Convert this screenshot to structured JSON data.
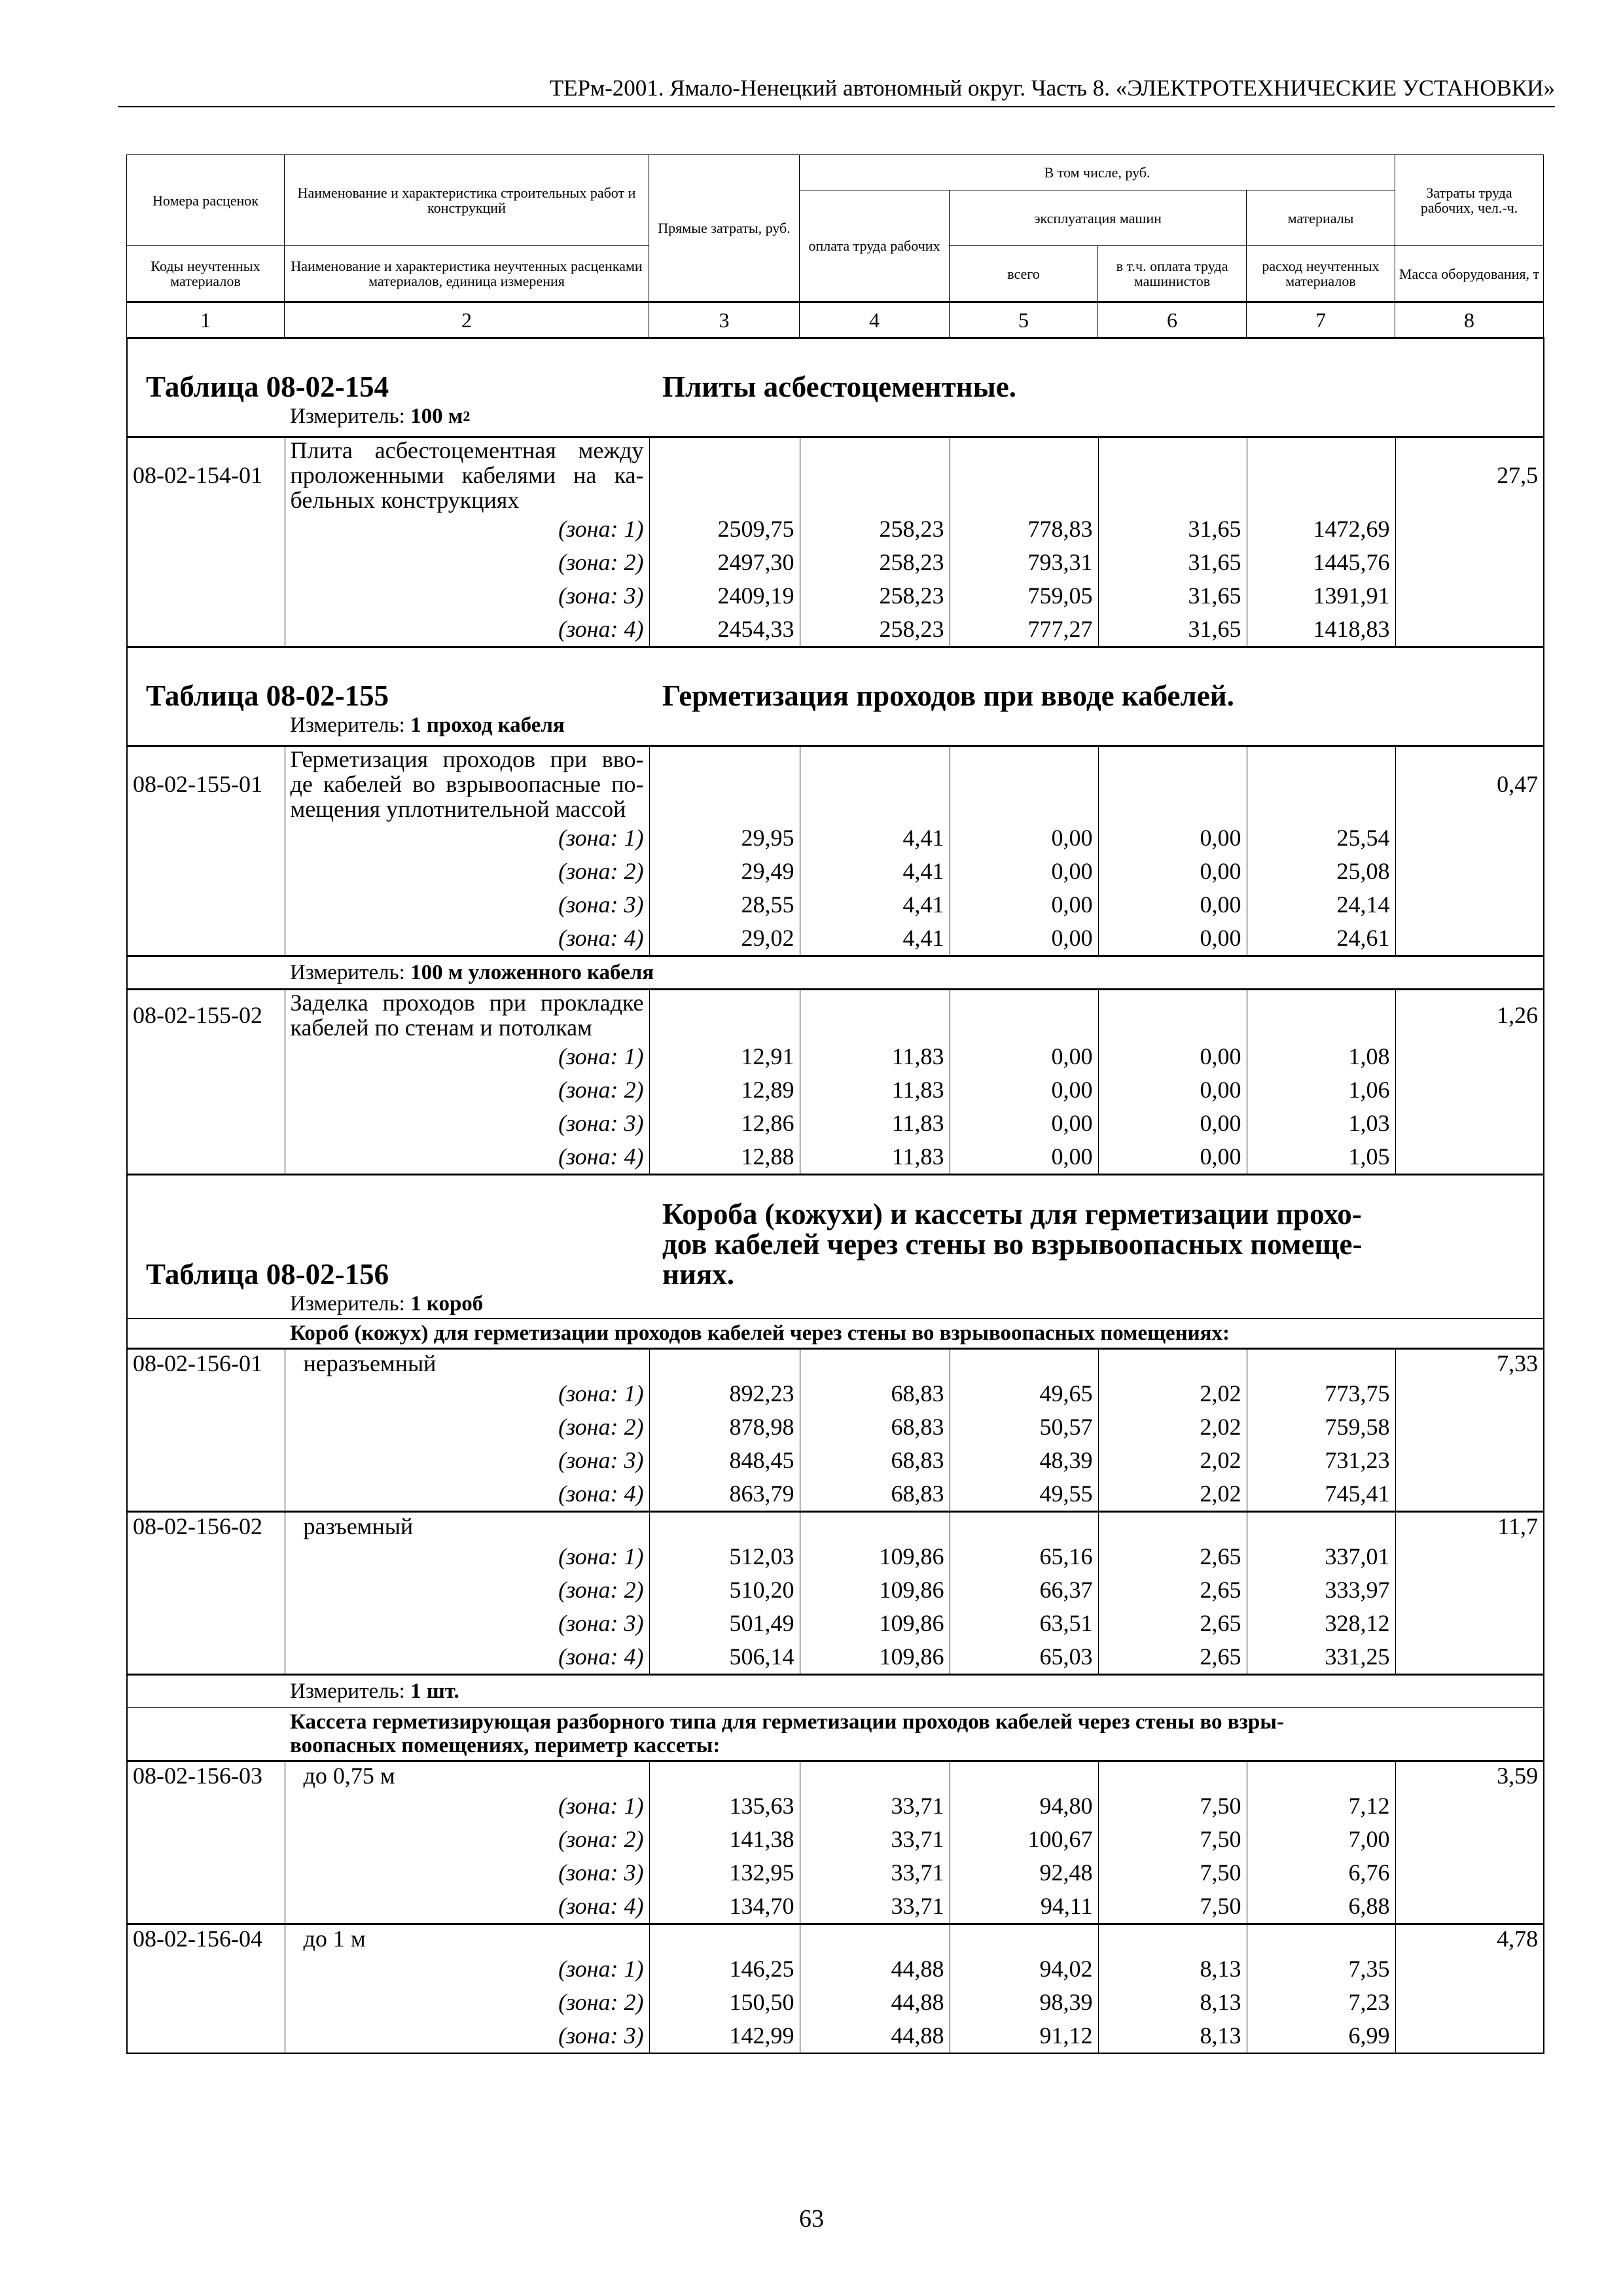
{
  "running_head": "ТЕРм-2001. Ямало-Ненецкий автономный округ. Часть 8. «ЭЛЕКТРОТЕХНИЧЕСКИЕ УСТАНОВКИ»",
  "page_number": "63",
  "header": {
    "c1_top": "Номера расценок",
    "c2_top": "Наименование и характеристика строительных работ и конструкций",
    "c3": "Прямые затраты, руб.",
    "incl": "В том числе, руб.",
    "c4": "оплата труда рабочих",
    "machines": "эксплуатация машин",
    "c5": "всего",
    "c6": "в т.ч. оплата труда машинистов",
    "materials": "материалы",
    "c7": "расход неучтенных материалов",
    "c8_top": "Затраты труда рабочих, чел.-ч.",
    "c1_bottom": "Коды неучтенных материалов",
    "c2_bottom": "Наименование и характеристика неучтенных расценками материалов, единица измерения",
    "c8_bottom": "Масса оборудования, т",
    "numbers": [
      "1",
      "2",
      "3",
      "4",
      "5",
      "6",
      "7",
      "8"
    ]
  },
  "rows": [
    {
      "type": "title",
      "code": "Таблица 08-02-154",
      "title": [
        "Плиты асбестоцементные."
      ]
    },
    {
      "type": "measure",
      "label": "Измеритель:",
      "value": "100 м",
      "sup": "2"
    },
    {
      "type": "item",
      "code": "08-02-154-01",
      "desc": [
        "Плита асбестоцементная между",
        "проложенными кабелями на ка-",
        "бельных конструкциях"
      ],
      "mass": "27,5",
      "zones": [
        {
          "label": "(зона: 1)",
          "values": [
            "2509,75",
            "258,23",
            "778,83",
            "31,65",
            "1472,69"
          ]
        },
        {
          "label": "(зона: 2)",
          "values": [
            "2497,30",
            "258,23",
            "793,31",
            "31,65",
            "1445,76"
          ]
        },
        {
          "label": "(зона: 3)",
          "values": [
            "2409,19",
            "258,23",
            "759,05",
            "31,65",
            "1391,91"
          ]
        },
        {
          "label": "(зона: 4)",
          "values": [
            "2454,33",
            "258,23",
            "777,27",
            "31,65",
            "1418,83"
          ]
        }
      ]
    },
    {
      "type": "title",
      "code": "Таблица 08-02-155",
      "title": [
        "Герметизация проходов при вводе кабелей."
      ]
    },
    {
      "type": "measure",
      "label": "Измеритель:",
      "value": "1 проход кабеля"
    },
    {
      "type": "item",
      "code": "08-02-155-01",
      "desc": [
        "Герметизация проходов при вво-",
        "де кабелей во взрывоопасные по-",
        "мещения уплотнительной массой"
      ],
      "mass": "0,47",
      "zones": [
        {
          "label": "(зона: 1)",
          "values": [
            "29,95",
            "4,41",
            "0,00",
            "0,00",
            "25,54"
          ]
        },
        {
          "label": "(зона: 2)",
          "values": [
            "29,49",
            "4,41",
            "0,00",
            "0,00",
            "25,08"
          ]
        },
        {
          "label": "(зона: 3)",
          "values": [
            "28,55",
            "4,41",
            "0,00",
            "0,00",
            "24,14"
          ]
        },
        {
          "label": "(зона: 4)",
          "values": [
            "29,02",
            "4,41",
            "0,00",
            "0,00",
            "24,61"
          ]
        }
      ]
    },
    {
      "type": "measure_sep",
      "label": "Измеритель:",
      "value": "100 м уложенного кабеля"
    },
    {
      "type": "item",
      "code": "08-02-155-02",
      "desc": [
        "Заделка проходов при прокладке",
        "кабелей по стенам и потолкам"
      ],
      "mass": "1,26",
      "zones": [
        {
          "label": "(зона: 1)",
          "values": [
            "12,91",
            "11,83",
            "0,00",
            "0,00",
            "1,08"
          ]
        },
        {
          "label": "(зона: 2)",
          "values": [
            "12,89",
            "11,83",
            "0,00",
            "0,00",
            "1,06"
          ]
        },
        {
          "label": "(зона: 3)",
          "values": [
            "12,86",
            "11,83",
            "0,00",
            "0,00",
            "1,03"
          ]
        },
        {
          "label": "(зона: 4)",
          "values": [
            "12,88",
            "11,83",
            "0,00",
            "0,00",
            "1,05"
          ]
        }
      ]
    },
    {
      "type": "title",
      "code": "Таблица 08-02-156",
      "title": [
        "Короба (кожухи) и кассеты для герметизации прохо-",
        "дов кабелей через стены во взрывоопасных помеще-",
        "ниях."
      ]
    },
    {
      "type": "measure",
      "label": "Измеритель:",
      "value": "1 короб"
    },
    {
      "type": "group",
      "lines": [
        "Короб (кожух) для герметизации проходов кабелей через стены во взрывоопасных помещениях:"
      ]
    },
    {
      "type": "item",
      "code": "08-02-156-01",
      "simple": true,
      "desc": [
        "неразъемный"
      ],
      "mass": "7,33",
      "zones": [
        {
          "label": "(зона: 1)",
          "values": [
            "892,23",
            "68,83",
            "49,65",
            "2,02",
            "773,75"
          ]
        },
        {
          "label": "(зона: 2)",
          "values": [
            "878,98",
            "68,83",
            "50,57",
            "2,02",
            "759,58"
          ]
        },
        {
          "label": "(зона: 3)",
          "values": [
            "848,45",
            "68,83",
            "48,39",
            "2,02",
            "731,23"
          ]
        },
        {
          "label": "(зона: 4)",
          "values": [
            "863,79",
            "68,83",
            "49,55",
            "2,02",
            "745,41"
          ]
        }
      ]
    },
    {
      "type": "item",
      "code": "08-02-156-02",
      "simple": true,
      "desc": [
        "разъемный"
      ],
      "mass": "11,7",
      "zones": [
        {
          "label": "(зона: 1)",
          "values": [
            "512,03",
            "109,86",
            "65,16",
            "2,65",
            "337,01"
          ]
        },
        {
          "label": "(зона: 2)",
          "values": [
            "510,20",
            "109,86",
            "66,37",
            "2,65",
            "333,97"
          ]
        },
        {
          "label": "(зона: 3)",
          "values": [
            "501,49",
            "109,86",
            "63,51",
            "2,65",
            "328,12"
          ]
        },
        {
          "label": "(зона: 4)",
          "values": [
            "506,14",
            "109,86",
            "65,03",
            "2,65",
            "331,25"
          ]
        }
      ]
    },
    {
      "type": "measure_sep",
      "label": "Измеритель:",
      "value": "1 шт."
    },
    {
      "type": "group",
      "lines": [
        "Кассета герметизирующая разборного типа для герметизации проходов кабелей через стены во взры-",
        "воопасных помещениях, периметр кассеты:"
      ]
    },
    {
      "type": "item",
      "code": "08-02-156-03",
      "simple": true,
      "desc": [
        "до 0,75 м"
      ],
      "mass": "3,59",
      "zones": [
        {
          "label": "(зона: 1)",
          "values": [
            "135,63",
            "33,71",
            "94,80",
            "7,50",
            "7,12"
          ]
        },
        {
          "label": "(зона: 2)",
          "values": [
            "141,38",
            "33,71",
            "100,67",
            "7,50",
            "7,00"
          ]
        },
        {
          "label": "(зона: 3)",
          "values": [
            "132,95",
            "33,71",
            "92,48",
            "7,50",
            "6,76"
          ]
        },
        {
          "label": "(зона: 4)",
          "values": [
            "134,70",
            "33,71",
            "94,11",
            "7,50",
            "6,88"
          ]
        }
      ]
    },
    {
      "type": "item",
      "code": "08-02-156-04",
      "simple": true,
      "desc": [
        "до 1 м"
      ],
      "mass": "4,78",
      "zones": [
        {
          "label": "(зона: 1)",
          "values": [
            "146,25",
            "44,88",
            "94,02",
            "8,13",
            "7,35"
          ]
        },
        {
          "label": "(зона: 2)",
          "values": [
            "150,50",
            "44,88",
            "98,39",
            "8,13",
            "7,23"
          ]
        },
        {
          "label": "(зона: 3)",
          "values": [
            "142,99",
            "44,88",
            "91,12",
            "8,13",
            "6,99"
          ]
        }
      ]
    }
  ]
}
